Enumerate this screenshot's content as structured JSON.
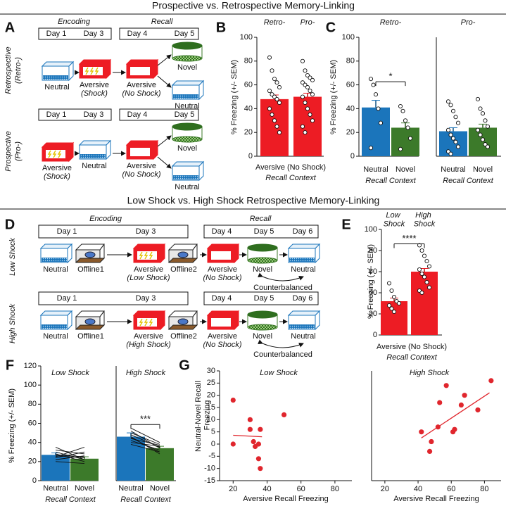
{
  "sections": [
    "Prospective vs. Retrospective Memory-Linking",
    "Low Shock vs. High Shock Retrospective Memory-Linking"
  ],
  "panels": {
    "A": {
      "letter": "A",
      "phases": [
        "Encoding",
        "Recall"
      ],
      "rows": [
        {
          "label": "Retrospective",
          "sublabel": "(Retro-)",
          "enc_days": [
            "Day 1",
            "Day 3"
          ],
          "rec_days": [
            "Day 4",
            "Day 5"
          ],
          "items": [
            {
              "label": "Neutral"
            },
            {
              "label": "Aversive",
              "sub": "(Shock)"
            },
            {
              "label": "Aversive",
              "sub": "(No Shock)"
            },
            {
              "label": "Novel"
            },
            {
              "label": "Neutral"
            }
          ]
        },
        {
          "label": "Prospective",
          "sublabel": "(Pro-)",
          "enc_days": [
            "Day 1",
            "Day 3"
          ],
          "rec_days": [
            "Day 4",
            "Day 5"
          ],
          "items": [
            {
              "label": "Aversive",
              "sub": "(Shock)"
            },
            {
              "label": "Neutral"
            },
            {
              "label": "Aversive",
              "sub": "(No Shock)"
            },
            {
              "label": "Novel"
            },
            {
              "label": "Neutral"
            }
          ]
        }
      ]
    },
    "B": {
      "letter": "B",
      "ylabel": "% Freezing (+/- SEM)",
      "ylim": [
        0,
        100
      ],
      "yticks": [
        0,
        20,
        40,
        60,
        80,
        100
      ],
      "bar_labels": [
        "Retro-",
        "Pro-"
      ],
      "category": "Aversive (No Shock)",
      "xlabel": "Recall Context",
      "bars": [
        {
          "value": 48,
          "error": 3.5,
          "color": "#ed1c24",
          "points": [
            83,
            72,
            65,
            62,
            58,
            55,
            52,
            50,
            48,
            45,
            40,
            35,
            30,
            25,
            20
          ]
        },
        {
          "value": 50,
          "error": 3,
          "color": "#ed1c24",
          "points": [
            80,
            72,
            68,
            66,
            64,
            62,
            60,
            58,
            55,
            52,
            50,
            45,
            40,
            35,
            30,
            25,
            20
          ]
        }
      ]
    },
    "C": {
      "letter": "C",
      "ylabel": "% Freezing (+/- SEM)",
      "ylim": [
        0,
        100
      ],
      "yticks": [
        0,
        20,
        40,
        60,
        80,
        100
      ],
      "subplots": [
        {
          "title": "Retro-",
          "categories": [
            "Neutral",
            "Novel"
          ],
          "xlabel": "Recall Context",
          "significance": "*",
          "bars": [
            {
              "value": 41,
              "error": 6,
              "color": "#1b75bb",
              "points": [
                65,
                60,
                52,
                40,
                28,
                7
              ]
            },
            {
              "value": 24,
              "error": 4,
              "color": "#3c7a2a",
              "points": [
                42,
                38,
                30,
                24,
                15,
                6
              ]
            }
          ]
        },
        {
          "title": "Pro-",
          "categories": [
            "Neutral",
            "Novel"
          ],
          "xlabel": "Recall Context",
          "bars": [
            {
              "value": 21,
              "error": 3,
              "color": "#1b75bb",
              "points": [
                46,
                43,
                38,
                33,
                28,
                22,
                18,
                15,
                12,
                8,
                4,
                2
              ]
            },
            {
              "value": 24,
              "error": 3,
              "color": "#3c7a2a",
              "points": [
                48,
                40,
                36,
                30,
                25,
                22,
                18,
                14,
                10,
                8
              ]
            }
          ]
        }
      ]
    },
    "D": {
      "letter": "D",
      "phases": [
        "Encoding",
        "Recall"
      ],
      "rows": [
        {
          "label": "Low Shock",
          "enc_days": [
            "Day 1",
            "Day 3"
          ],
          "rec_days": [
            "Day 4",
            "Day 5",
            "Day 6"
          ],
          "note": "Counterbalanced",
          "items": [
            {
              "label": "Neutral"
            },
            {
              "label": "Offline1"
            },
            {
              "label": "Aversive",
              "sub": "(Low Shock)"
            },
            {
              "label": "Offline2"
            },
            {
              "label": "Aversive",
              "sub": "(No Shock)"
            },
            {
              "label": "Novel"
            },
            {
              "label": "Neutral"
            }
          ]
        },
        {
          "label": "High Shock",
          "enc_days": [
            "Day 1",
            "Day 3"
          ],
          "rec_days": [
            "Day 4",
            "Day 5",
            "Day 6"
          ],
          "note": "Counterbalanced",
          "items": [
            {
              "label": "Neutral"
            },
            {
              "label": "Offline1"
            },
            {
              "label": "Aversive",
              "sub": "(High Shock)"
            },
            {
              "label": "Offline2"
            },
            {
              "label": "Aversive",
              "sub": "(No Shock)"
            },
            {
              "label": "Novel"
            },
            {
              "label": "Neutral"
            }
          ]
        }
      ]
    },
    "E": {
      "letter": "E",
      "ylabel": "% Freezing (+/- SEM)",
      "ylim": [
        0,
        100
      ],
      "yticks": [
        0,
        20,
        40,
        60,
        80,
        100
      ],
      "bar_labels": [
        "Low Shock",
        "High Shock"
      ],
      "category": "Aversive (No Shock)",
      "xlabel": "Recall Context",
      "significance": "****",
      "bars": [
        {
          "value": 32,
          "error": 3,
          "color": "#ed1c24",
          "points": [
            49,
            42,
            36,
            32,
            30,
            28,
            25,
            22
          ]
        },
        {
          "value": 60,
          "error": 3,
          "color": "#ed1c24",
          "points": [
            85,
            80,
            75,
            70,
            65,
            62,
            58,
            55,
            50,
            45,
            42,
            40
          ]
        }
      ]
    },
    "F": {
      "letter": "F",
      "ylabel": "% Freezing (+/- SEM)",
      "ylim": [
        0,
        120
      ],
      "yticks": [
        0,
        20,
        40,
        60,
        80,
        100,
        120
      ],
      "subplots": [
        {
          "title": "Low Shock",
          "categories": [
            "Neutral",
            "Novel"
          ],
          "xlabel": "Recall Context",
          "bars": [
            {
              "value": 27,
              "error": 2,
              "color": "#1b75bb"
            },
            {
              "value": 23,
              "error": 2,
              "color": "#3c7a2a"
            }
          ],
          "pairs": [
            [
              25,
              35
            ],
            [
              30,
              22
            ],
            [
              28,
              20
            ],
            [
              22,
              26
            ],
            [
              26,
              24
            ],
            [
              20,
              18
            ],
            [
              32,
              28
            ],
            [
              24,
              30
            ],
            [
              35,
              22
            ],
            [
              27,
              25
            ]
          ]
        },
        {
          "title": "High Shock",
          "categories": [
            "Neutral",
            "Novel"
          ],
          "xlabel": "Recall Context",
          "significance": "***",
          "bars": [
            {
              "value": 46,
              "error": 4,
              "color": "#1b75bb"
            },
            {
              "value": 34,
              "error": 2,
              "color": "#3c7a2a"
            }
          ],
          "pairs": [
            [
              55,
              40
            ],
            [
              50,
              38
            ],
            [
              48,
              35
            ],
            [
              45,
              30
            ],
            [
              42,
              32
            ],
            [
              40,
              36
            ],
            [
              52,
              34
            ],
            [
              38,
              30
            ],
            [
              46,
              28
            ],
            [
              44,
              37
            ]
          ]
        }
      ]
    },
    "G": {
      "letter": "G",
      "ylabel": "Neutral-Novel Recall Freezing",
      "xlabel": "Aversive Recall Freezing",
      "color": "#e0262d",
      "xlim": [
        12,
        90
      ],
      "xticks": [
        20,
        40,
        60,
        80
      ],
      "ylim": [
        -15,
        30
      ],
      "yticks": [
        -15,
        -10,
        -5,
        0,
        5,
        10,
        15,
        20,
        25,
        30
      ],
      "subplots": [
        {
          "title": "Low Shock",
          "x": [
            20,
            20,
            30,
            30,
            32,
            33,
            35,
            35,
            36,
            36,
            50
          ],
          "y": [
            18,
            0,
            10,
            6,
            1,
            -1,
            0,
            -6,
            6,
            -10,
            12
          ],
          "fit": {
            "x": [
              20,
              37
            ],
            "y": [
              3.6,
              3.0
            ]
          }
        },
        {
          "title": "High Shock",
          "x": [
            42,
            47,
            48,
            52,
            53,
            57,
            61,
            62,
            66,
            68,
            76,
            84
          ],
          "y": [
            5,
            -3,
            1,
            7,
            17,
            24,
            5,
            6,
            16,
            20,
            14,
            26
          ],
          "fit": {
            "x": [
              42,
              83
            ],
            "y": [
              2.5,
              21
            ]
          }
        }
      ]
    }
  }
}
